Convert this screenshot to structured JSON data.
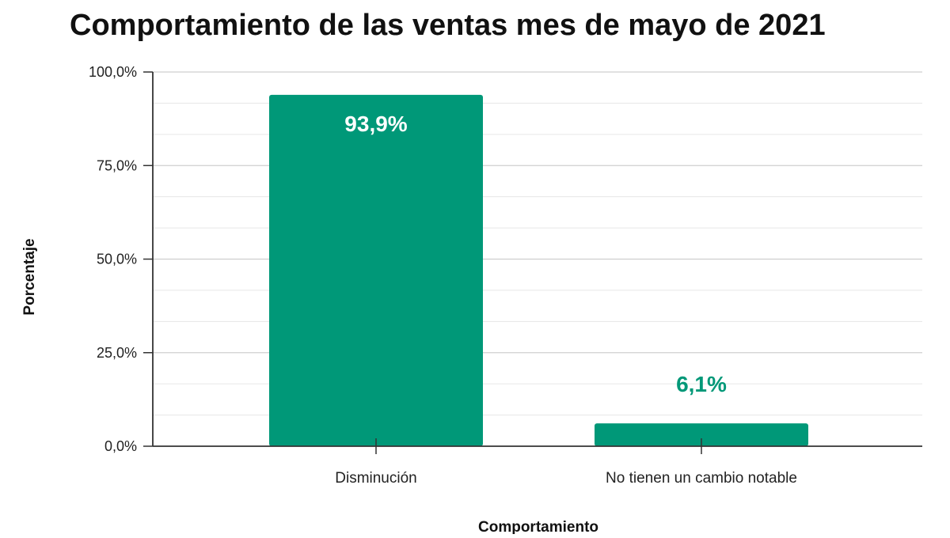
{
  "chart_data": {
    "type": "bar",
    "title": "Comportamiento de las ventas mes de mayo de 2021",
    "xlabel": "Comportamiento",
    "ylabel": "Porcentaje",
    "categories": [
      "Disminución",
      "No tienen un cambio notable"
    ],
    "values": [
      93.9,
      6.1
    ],
    "data_labels": [
      "93,9%",
      "6,1%"
    ],
    "ylim": [
      0,
      100
    ],
    "yticks": [
      0,
      25,
      50,
      75,
      100
    ],
    "ytick_labels": [
      "0,0%",
      "25,0%",
      "50,0%",
      "75,0%",
      "100,0%"
    ],
    "minor_gridlines": true,
    "grid": true,
    "legend": "none",
    "bar_color": "#009878",
    "inside_label_color": "#ffffff",
    "outside_label_color": "#009878"
  }
}
